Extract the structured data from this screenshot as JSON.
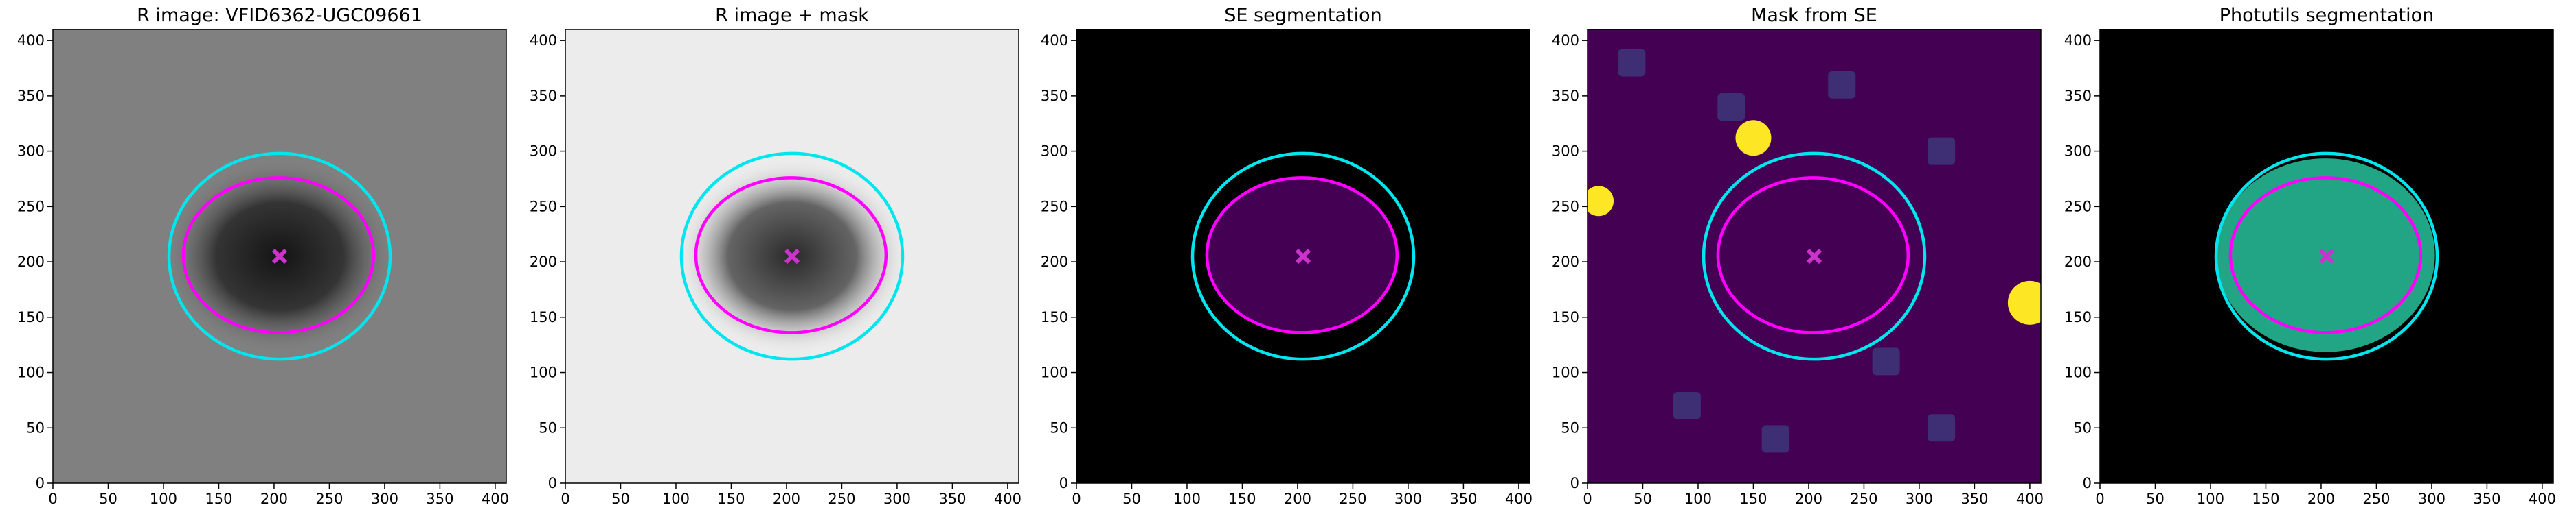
{
  "chart_data": [
    {
      "type": "image",
      "title": "R image: VFID6362-UGC09661",
      "background": "#808080",
      "fill": "#141414",
      "xlim": [
        0,
        410
      ],
      "ylim": [
        0,
        410
      ],
      "xticks": [
        0,
        50,
        100,
        150,
        200,
        250,
        300,
        350,
        400
      ],
      "yticks": [
        0,
        50,
        100,
        150,
        200,
        250,
        300,
        350,
        400
      ],
      "ellipses": [
        {
          "color": "#00e5ee",
          "cx": 205,
          "cy": 205,
          "rx": 100,
          "ry": 93
        },
        {
          "color": "#ff00ff",
          "cx": 204,
          "cy": 206,
          "rx": 86,
          "ry": 70
        }
      ],
      "marker": {
        "x": 205,
        "y": 205,
        "color": "#cc33cc"
      }
    },
    {
      "type": "image",
      "title": "R image + mask",
      "background": "#ececec",
      "fill": "#2a2a2a",
      "xlim": [
        0,
        410
      ],
      "ylim": [
        0,
        410
      ],
      "xticks": [
        0,
        50,
        100,
        150,
        200,
        250,
        300,
        350,
        400
      ],
      "yticks": [
        0,
        50,
        100,
        150,
        200,
        250,
        300,
        350,
        400
      ],
      "ellipses": [
        {
          "color": "#00e5ee",
          "cx": 205,
          "cy": 205,
          "rx": 100,
          "ry": 93
        },
        {
          "color": "#ff00ff",
          "cx": 204,
          "cy": 206,
          "rx": 86,
          "ry": 70
        }
      ],
      "marker": {
        "x": 205,
        "y": 205,
        "color": "#cc33cc"
      }
    },
    {
      "type": "image",
      "title": "SE segmentation",
      "background": "#000000",
      "fill": "#440154",
      "xlim": [
        0,
        410
      ],
      "ylim": [
        0,
        410
      ],
      "xticks": [
        0,
        50,
        100,
        150,
        200,
        250,
        300,
        350,
        400
      ],
      "yticks": [
        0,
        50,
        100,
        150,
        200,
        250,
        300,
        350,
        400
      ],
      "ellipses": [
        {
          "color": "#00e5ee",
          "cx": 205,
          "cy": 205,
          "rx": 100,
          "ry": 93
        },
        {
          "color": "#ff00ff",
          "cx": 204,
          "cy": 206,
          "rx": 86,
          "ry": 70
        }
      ],
      "marker": {
        "x": 205,
        "y": 205,
        "color": "#cc33cc"
      }
    },
    {
      "type": "image",
      "title": "Mask from SE",
      "background": "#440154",
      "fill": "#440154",
      "xlim": [
        0,
        410
      ],
      "ylim": [
        0,
        410
      ],
      "xticks": [
        0,
        50,
        100,
        150,
        200,
        250,
        300,
        350,
        400
      ],
      "yticks": [
        0,
        50,
        100,
        150,
        200,
        250,
        300,
        350,
        400
      ],
      "ellipses": [
        {
          "color": "#00e5ee",
          "cx": 205,
          "cy": 205,
          "rx": 100,
          "ry": 93
        },
        {
          "color": "#ff00ff",
          "cx": 204,
          "cy": 206,
          "rx": 86,
          "ry": 70
        }
      ],
      "marker": {
        "x": 205,
        "y": 205,
        "color": "#cc33cc"
      }
    },
    {
      "type": "image",
      "title": "Photutils segmentation",
      "background": "#000000",
      "fill": "#21a585",
      "xlim": [
        0,
        410
      ],
      "ylim": [
        0,
        410
      ],
      "xticks": [
        0,
        50,
        100,
        150,
        200,
        250,
        300,
        350,
        400
      ],
      "yticks": [
        0,
        50,
        100,
        150,
        200,
        250,
        300,
        350,
        400
      ],
      "ellipses": [
        {
          "color": "#00e5ee",
          "cx": 205,
          "cy": 205,
          "rx": 100,
          "ry": 93
        },
        {
          "color": "#ff00ff",
          "cx": 204,
          "cy": 206,
          "rx": 86,
          "ry": 70
        }
      ],
      "marker": {
        "x": 205,
        "y": 205,
        "color": "#cc33cc"
      }
    }
  ]
}
